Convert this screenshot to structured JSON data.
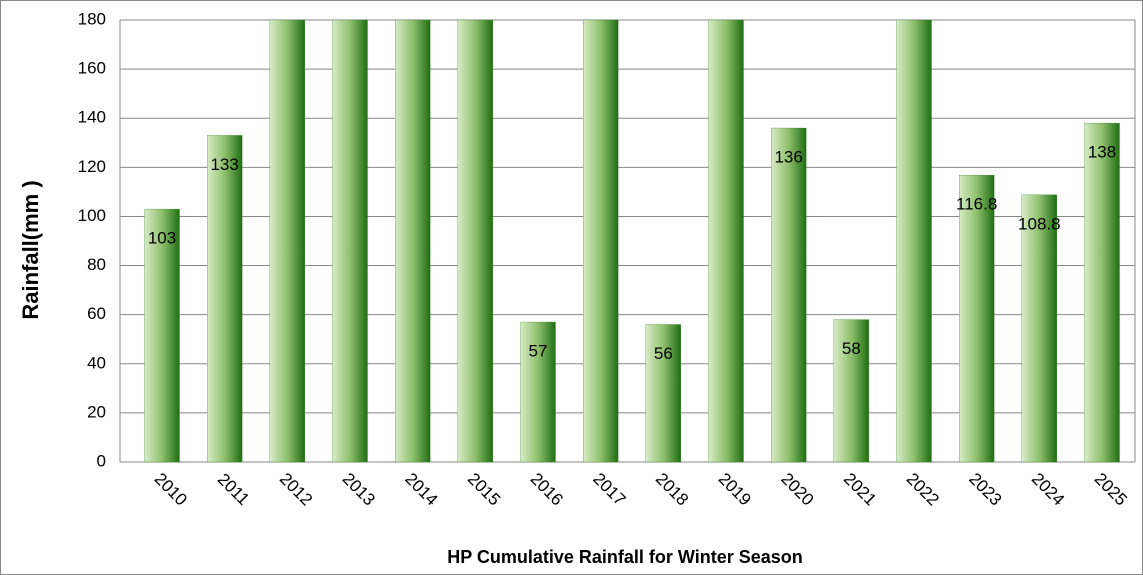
{
  "chart_data": {
    "type": "bar",
    "x_label": "HP Cumulative Rainfall for Winter Season",
    "y_label": "Rainfall(mm )",
    "categories": [
      "2010",
      "2011",
      "2012",
      "2013",
      "2014",
      "2015",
      "2016",
      "2017",
      "2018",
      "2019",
      "2020",
      "2021",
      "2022",
      "2023",
      "2024",
      "2025"
    ],
    "values": [
      103,
      133,
      180,
      180,
      180,
      180,
      57,
      180,
      56,
      180,
      136,
      58,
      180,
      116.8,
      108.8,
      138
    ],
    "value_labels": [
      "103",
      "133",
      null,
      null,
      null,
      null,
      "57",
      null,
      "56",
      null,
      "136",
      "58",
      null,
      "116.8",
      "108.8",
      "138"
    ],
    "color": "#2e7d1e",
    "ylim": [
      0,
      180
    ],
    "yticks": [
      0,
      20,
      40,
      60,
      80,
      100,
      120,
      140,
      160,
      180
    ],
    "grid": true
  }
}
